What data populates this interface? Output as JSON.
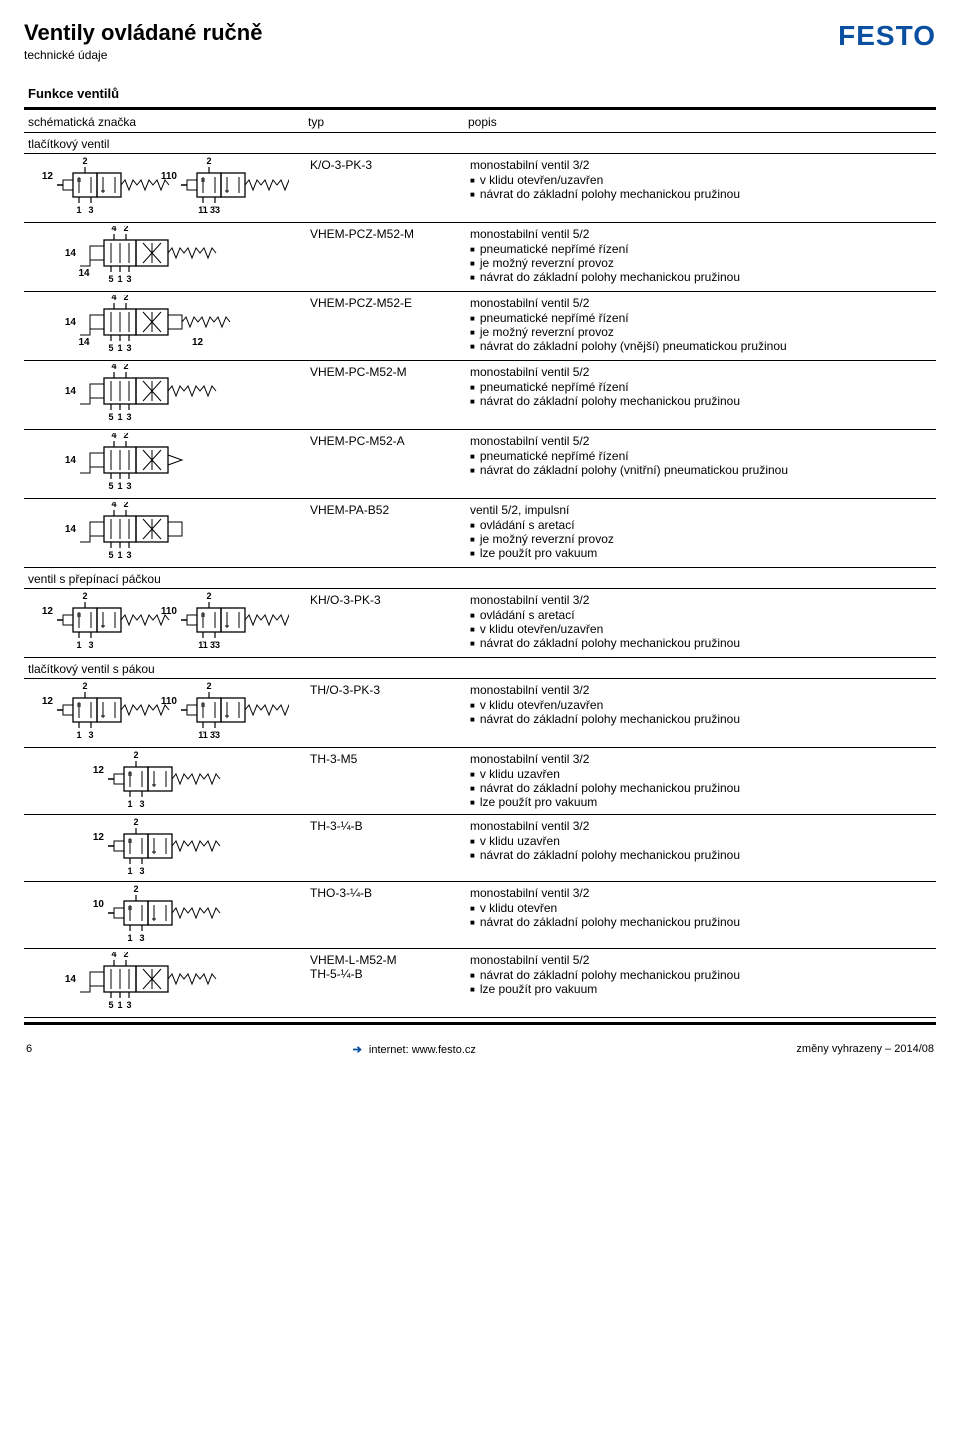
{
  "page_title": "Ventily ovládané ručně",
  "page_subtitle": "technické údaje",
  "logo_text": "FESTO",
  "section_label": "Funkce ventilů",
  "columns": {
    "schema": "schématická značka",
    "typ": "typ",
    "popis": "popis"
  },
  "colors": {
    "brand": "#0a4fa0",
    "rule": "#000000",
    "text": "#000000",
    "bg": "#ffffff"
  },
  "groups": [
    {
      "label": "tlačítkový ventil",
      "rows": [
        {
          "svg": "v32pair",
          "typ": "K/O-3-PK-3",
          "title": "monostabilní ventil 3/2",
          "bullets": [
            "v klidu otevřen/uzavřen",
            "návrat do základní polohy mechanickou pružinou"
          ]
        },
        {
          "svg": "v52_m",
          "typ": "VHEM-PCZ-M52-M",
          "title": "monostabilní ventil 5/2",
          "bullets": [
            "pneumatické nepřímé řízení",
            "je možný reverzní provoz",
            "návrat do základní polohy mechanickou pružinou"
          ]
        },
        {
          "svg": "v52_e",
          "typ": "VHEM-PCZ-M52-E",
          "title": "monostabilní ventil 5/2",
          "bullets": [
            "pneumatické nepřímé řízení",
            "je možný reverzní provoz",
            "návrat do základní polohy (vnější) pneumatickou pružinou"
          ]
        },
        {
          "svg": "v52_m2",
          "typ": "VHEM-PC-M52-M",
          "title": "monostabilní ventil 5/2",
          "bullets": [
            "pneumatické nepřímé řízení",
            "návrat do základní polohy mechanickou pružinou"
          ]
        },
        {
          "svg": "v52_a",
          "typ": "VHEM-PC-M52-A",
          "title": "monostabilní ventil 5/2",
          "bullets": [
            "pneumatické nepřímé řízení",
            "návrat do základní polohy (vnitřní) pneumatickou pružinou"
          ]
        },
        {
          "svg": "v52_imp",
          "typ": "VHEM-PA-B52",
          "title": "ventil 5/2, impulsní",
          "bullets": [
            "ovládání s aretací",
            "je možný reverzní provoz",
            "lze použít pro vakuum"
          ]
        }
      ]
    },
    {
      "label": "ventil s přepínací páčkou",
      "rows": [
        {
          "svg": "v32pair_lever",
          "typ": "KH/O-3-PK-3",
          "title": "monostabilní ventil 3/2",
          "bullets": [
            "ovládání s aretací",
            "v klidu otevřen/uzavřen",
            "návrat do základní polohy mechanickou pružinou"
          ]
        }
      ]
    },
    {
      "label": "tlačítkový ventil s pákou",
      "rows": [
        {
          "svg": "v32pair_paka",
          "typ": "TH/O-3-PK-3",
          "title": "monostabilní ventil 3/2",
          "bullets": [
            "v klidu otevřen/uzavřen",
            "návrat do základní polohy mechanickou pružinou"
          ]
        },
        {
          "svg": "v32_single_closed_vac",
          "typ": "TH-3-M5",
          "title": "monostabilní ventil 3/2",
          "bullets": [
            "v klidu uzavřen",
            "návrat do základní polohy mechanickou pružinou",
            "lze použít pro vakuum"
          ]
        },
        {
          "svg": "v32_single_closed",
          "typ": "TH-3-¼-B",
          "title": "monostabilní ventil 3/2",
          "bullets": [
            "v klidu uzavřen",
            "návrat do základní polohy mechanickou pružinou"
          ]
        },
        {
          "svg": "v32_single_open",
          "typ": "THO-3-¼-B",
          "title": "monostabilní ventil 3/2",
          "bullets": [
            "v klidu otevřen",
            "návrat do základní polohy mechanickou pružinou"
          ]
        },
        {
          "svg": "v52_l",
          "typ_lines": [
            "VHEM-L-M52-M",
            "TH-5-¼-B"
          ],
          "title": "monostabilní ventil 5/2",
          "bullets": [
            "návrat do základní polohy mechanickou pružinou",
            "lze použít pro vakuum"
          ]
        }
      ]
    }
  ],
  "footer": {
    "page": "6",
    "internet_label": "internet: www.festo.cz",
    "right": "změny vyhrazeny – 2014/08"
  }
}
